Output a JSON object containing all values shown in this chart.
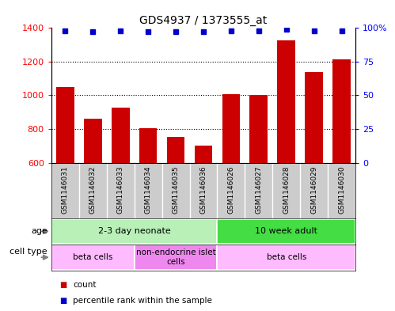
{
  "title": "GDS4937 / 1373555_at",
  "samples": [
    "GSM1146031",
    "GSM1146032",
    "GSM1146033",
    "GSM1146034",
    "GSM1146035",
    "GSM1146036",
    "GSM1146026",
    "GSM1146027",
    "GSM1146028",
    "GSM1146029",
    "GSM1146030"
  ],
  "counts": [
    1050,
    860,
    925,
    805,
    755,
    700,
    1005,
    1000,
    1325,
    1140,
    1215
  ],
  "percentiles": [
    98,
    97,
    98,
    97,
    97,
    97,
    98,
    98,
    99,
    98,
    98
  ],
  "ylim_left": [
    600,
    1400
  ],
  "ylim_right": [
    0,
    100
  ],
  "yticks_left": [
    600,
    800,
    1000,
    1200,
    1400
  ],
  "yticks_right": [
    0,
    25,
    50,
    75,
    100
  ],
  "bar_color": "#cc0000",
  "dot_color": "#0000cc",
  "age_groups": [
    {
      "label": "2-3 day neonate",
      "start": 0,
      "end": 6,
      "color": "#b8f0b8"
    },
    {
      "label": "10 week adult",
      "start": 6,
      "end": 11,
      "color": "#44dd44"
    }
  ],
  "cell_type_groups": [
    {
      "label": "beta cells",
      "start": 0,
      "end": 3,
      "color": "#ffbbff"
    },
    {
      "label": "non-endocrine islet\ncells",
      "start": 3,
      "end": 6,
      "color": "#ee88ee"
    },
    {
      "label": "beta cells",
      "start": 6,
      "end": 11,
      "color": "#ffbbff"
    }
  ],
  "tick_label_area_color": "#cccccc",
  "legend_items": [
    {
      "label": "count",
      "color": "#cc0000"
    },
    {
      "label": "percentile rank within the sample",
      "color": "#0000cc"
    }
  ],
  "grid_dotted_at": [
    800,
    1000,
    1200
  ]
}
